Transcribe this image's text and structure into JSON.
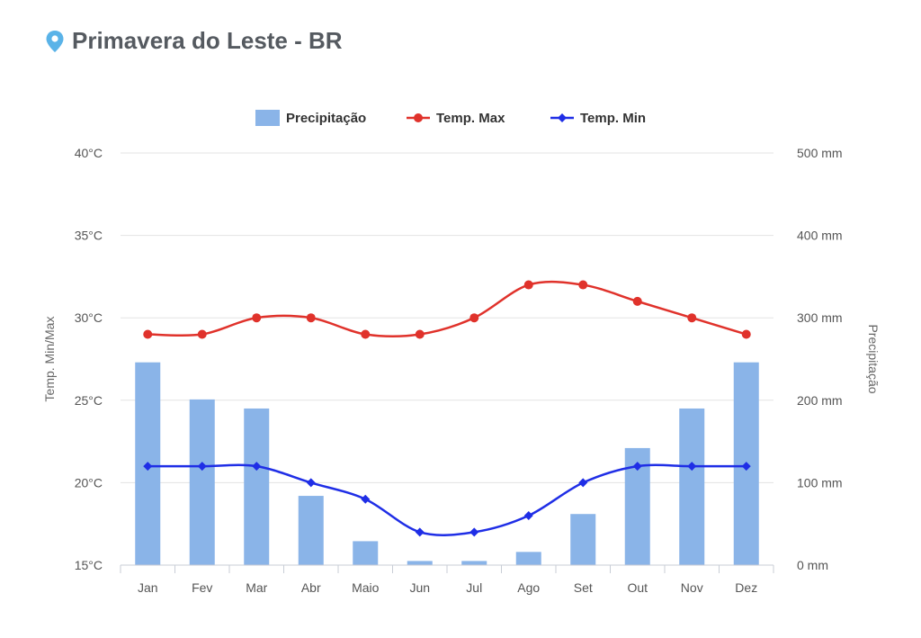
{
  "page": {
    "location_title": "Primavera do Leste - BR"
  },
  "colors": {
    "precip": "#8ab4e8",
    "tmax": "#e0322b",
    "tmin": "#1f2ee6",
    "grid": "#e3e3e3",
    "pin": "#5ab3e8"
  },
  "chart_data": {
    "type": "bar+line",
    "categories": [
      "Jan",
      "Fev",
      "Mar",
      "Abr",
      "Maio",
      "Jun",
      "Jul",
      "Ago",
      "Set",
      "Out",
      "Nov",
      "Dez"
    ],
    "series": [
      {
        "name": "Precipitação",
        "type": "bar",
        "axis": "right",
        "values": [
          246,
          201,
          190,
          84,
          29,
          5,
          5,
          16,
          62,
          142,
          190,
          246
        ]
      },
      {
        "name": "Temp. Max",
        "type": "line",
        "axis": "left",
        "values": [
          29,
          29,
          30,
          30,
          29,
          29,
          30,
          32,
          32,
          31,
          30,
          29
        ]
      },
      {
        "name": "Temp. Min",
        "type": "line",
        "axis": "left",
        "values": [
          21,
          21,
          21,
          20,
          19,
          17,
          17,
          18,
          20,
          21,
          21,
          21
        ]
      }
    ],
    "left_axis": {
      "label": "Temp. Min/Max",
      "range": [
        15,
        40
      ],
      "ticks": [
        "15°C",
        "20°C",
        "25°C",
        "30°C",
        "35°C",
        "40°C"
      ]
    },
    "right_axis": {
      "label": "Precipitação",
      "range": [
        0,
        500
      ],
      "ticks": [
        "0 mm",
        "100 mm",
        "200 mm",
        "300 mm",
        "400 mm",
        "500 mm"
      ]
    },
    "legend_position": "top-center"
  }
}
